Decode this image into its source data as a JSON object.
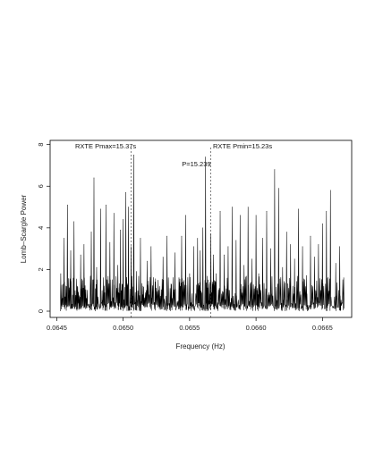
{
  "chart_data": {
    "type": "line",
    "title": "",
    "xlabel": "Frequency (Hz)",
    "ylabel": "Lomb–Scargle Power",
    "xlim": [
      0.06445,
      0.06672
    ],
    "ylim": [
      -0.3,
      8.2
    ],
    "x_ticks": [
      0.0645,
      0.065,
      0.0655,
      0.066,
      0.0665
    ],
    "x_tick_labels": [
      "0.0645",
      "0.0650",
      "0.0655",
      "0.0660",
      "0.0665"
    ],
    "y_ticks": [
      0,
      2,
      4,
      6,
      8
    ],
    "y_tick_labels": [
      "0",
      "2",
      "4",
      "6",
      "8"
    ],
    "grid": false,
    "frame": true,
    "series": [
      {
        "color": "#000000",
        "x": [
          0.06453,
          0.064555,
          0.06458,
          0.064605,
          0.06463,
          0.064655,
          0.06468,
          0.064705,
          0.06473,
          0.06476,
          0.06478,
          0.0648,
          0.06483,
          0.06485,
          0.06487,
          0.0649,
          0.06493,
          0.06496,
          0.06498,
          0.065,
          0.06502,
          0.06504,
          0.06506,
          0.06508,
          0.0651,
          0.06513,
          0.06515,
          0.06518,
          0.06521,
          0.06524,
          0.06527,
          0.0653,
          0.06533,
          0.06536,
          0.06539,
          0.06542,
          0.06544,
          0.06547,
          0.0655,
          0.06553,
          0.06556,
          0.06558,
          0.0656,
          0.06562,
          0.06564,
          0.06566,
          0.06568,
          0.0657,
          0.06573,
          0.06576,
          0.06579,
          0.06582,
          0.06585,
          0.06588,
          0.06591,
          0.06594,
          0.06597,
          0.066,
          0.06602,
          0.06605,
          0.06608,
          0.06611,
          0.06614,
          0.06617,
          0.0662,
          0.06623,
          0.06626,
          0.06629,
          0.06632,
          0.06635,
          0.06638,
          0.06641,
          0.06644,
          0.06647,
          0.0665,
          0.06653,
          0.06656,
          0.0666,
          0.06663,
          0.06666
        ],
        "y": [
          1.8,
          3.5,
          5.1,
          2.9,
          4.3,
          1.2,
          2.7,
          3.2,
          1.0,
          3.8,
          6.4,
          2.1,
          4.9,
          1.6,
          5.1,
          3.3,
          4.7,
          2.2,
          3.9,
          4.4,
          5.7,
          5.0,
          3.1,
          7.5,
          1.9,
          3.5,
          1.2,
          2.4,
          3.1,
          1.4,
          1.0,
          2.6,
          3.6,
          1.3,
          2.8,
          1.6,
          3.6,
          4.6,
          1.8,
          3.1,
          3.5,
          2.9,
          4.0,
          7.4,
          1.5,
          3.7,
          2.7,
          1.8,
          4.8,
          2.7,
          3.1,
          5.0,
          3.4,
          4.6,
          2.2,
          5.0,
          2.5,
          4.6,
          1.8,
          3.5,
          4.8,
          3.0,
          6.8,
          5.9,
          2.1,
          3.8,
          3.2,
          2.5,
          4.9,
          3.1,
          1.7,
          3.6,
          2.6,
          3.2,
          4.2,
          4.8,
          5.8,
          2.3,
          3.1,
          1.6
        ]
      }
    ],
    "annotations": [
      {
        "type": "vline",
        "x": 0.06506,
        "style": "dashed",
        "label": "RXTE Pmax=15.37s",
        "label_side": "left"
      },
      {
        "type": "vline",
        "x": 0.06566,
        "style": "dashed",
        "label": "RXTE Pmin=15.23s",
        "label_side": "right"
      },
      {
        "type": "text",
        "x": 0.06559,
        "y": 6.95,
        "label": "P=15.239"
      }
    ]
  }
}
